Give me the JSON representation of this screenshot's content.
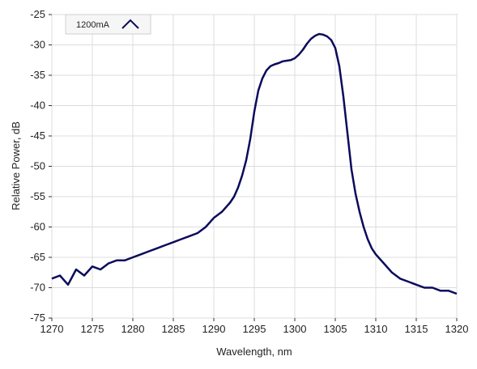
{
  "chart_data": {
    "type": "line",
    "xlabel": "Wavelength, nm",
    "ylabel": "Relative Power, dB",
    "xlim": [
      1270,
      1320
    ],
    "ylim": [
      -75,
      -25
    ],
    "x_ticks": [
      1270,
      1275,
      1280,
      1285,
      1290,
      1295,
      1300,
      1305,
      1310,
      1315,
      1320
    ],
    "y_ticks": [
      -25,
      -30,
      -35,
      -40,
      -45,
      -50,
      -55,
      -60,
      -65,
      -70,
      -75
    ],
    "grid": true,
    "legend_position": "top-left",
    "series": [
      {
        "name": "1200mA",
        "color": "#0b0b5c",
        "x": [
          1270,
          1271,
          1272,
          1273,
          1274,
          1275,
          1276,
          1277,
          1278,
          1279,
          1280,
          1281,
          1282,
          1283,
          1284,
          1285,
          1286,
          1287,
          1288,
          1289,
          1290,
          1291,
          1292,
          1292.5,
          1293,
          1293.5,
          1294,
          1294.5,
          1295,
          1295.5,
          1296,
          1296.5,
          1297,
          1297.5,
          1298,
          1298.5,
          1299,
          1299.5,
          1300,
          1300.5,
          1301,
          1301.5,
          1302,
          1302.5,
          1303,
          1303.5,
          1304,
          1304.5,
          1305,
          1305.5,
          1306,
          1306.5,
          1307,
          1307.5,
          1308,
          1308.5,
          1309,
          1309.5,
          1310,
          1311,
          1312,
          1313,
          1314,
          1315,
          1316,
          1317,
          1318,
          1319,
          1320
        ],
        "values": [
          -68.5,
          -68.0,
          -69.5,
          -67.0,
          -68.0,
          -66.5,
          -67.0,
          -66.0,
          -65.5,
          -65.5,
          -65.0,
          -64.5,
          -64.0,
          -63.5,
          -63.0,
          -62.5,
          -62.0,
          -61.5,
          -61.0,
          -60.0,
          -58.5,
          -57.5,
          -56.0,
          -55.0,
          -53.5,
          -51.5,
          -49.0,
          -45.5,
          -41.0,
          -37.5,
          -35.5,
          -34.2,
          -33.5,
          -33.2,
          -33.0,
          -32.7,
          -32.6,
          -32.5,
          -32.2,
          -31.6,
          -30.8,
          -29.8,
          -29.0,
          -28.5,
          -28.2,
          -28.3,
          -28.6,
          -29.2,
          -30.5,
          -33.5,
          -38.5,
          -44.5,
          -50.5,
          -54.5,
          -57.5,
          -60.0,
          -62.0,
          -63.5,
          -64.5,
          -66.0,
          -67.5,
          -68.5,
          -69.0,
          -69.5,
          -70.0,
          -70.0,
          -70.5,
          -70.5,
          -71.0
        ]
      }
    ]
  }
}
